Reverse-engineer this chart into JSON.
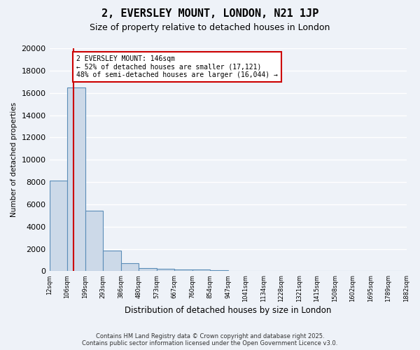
{
  "title": "2, EVERSLEY MOUNT, LONDON, N21 1JP",
  "subtitle": "Size of property relative to detached houses in London",
  "xlabel": "Distribution of detached houses by size in London",
  "ylabel": "Number of detached properties",
  "bar_color": "#ccd9e8",
  "bar_edge_color": "#5b8db8",
  "bar_heights": [
    8100,
    16500,
    5400,
    1850,
    700,
    300,
    200,
    150,
    150,
    100,
    50,
    30,
    20,
    10,
    5,
    3,
    2,
    1,
    1,
    1
  ],
  "x_labels": [
    "12sqm",
    "106sqm",
    "199sqm",
    "293sqm",
    "386sqm",
    "480sqm",
    "573sqm",
    "667sqm",
    "760sqm",
    "854sqm",
    "947sqm",
    "1041sqm",
    "1134sqm",
    "1228sqm",
    "1321sqm",
    "1415sqm",
    "1508sqm",
    "1602sqm",
    "1695sqm",
    "1789sqm",
    "1882sqm"
  ],
  "ylim": [
    0,
    20000
  ],
  "yticks": [
    0,
    2000,
    4000,
    6000,
    8000,
    10000,
    12000,
    14000,
    16000,
    18000,
    20000
  ],
  "red_line_x": 1.35,
  "annotation_text": "2 EVERSLEY MOUNT: 146sqm\n← 52% of detached houses are smaller (17,121)\n48% of semi-detached houses are larger (16,044) →",
  "annotation_box_color": "#ffffff",
  "annotation_border_color": "#cc0000",
  "footer_line1": "Contains HM Land Registry data © Crown copyright and database right 2025.",
  "footer_line2": "Contains public sector information licensed under the Open Government Licence v3.0.",
  "background_color": "#eef2f8",
  "grid_color": "#ffffff"
}
